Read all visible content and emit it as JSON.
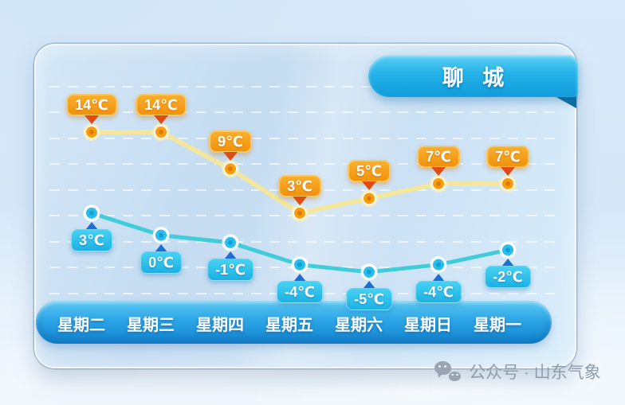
{
  "title": {
    "city": "聊 城"
  },
  "watermark": {
    "text": "公众号 · 山东气象",
    "icon": "wechat-icon"
  },
  "chart_data": {
    "type": "line",
    "categories": [
      "星期二",
      "星期三",
      "星期四",
      "星期五",
      "星期六",
      "星期日",
      "星期一"
    ],
    "unit": "℃",
    "series": [
      {
        "name": "high",
        "values": [
          14,
          14,
          9,
          3,
          5,
          7,
          7
        ]
      },
      {
        "name": "low",
        "values": [
          3,
          0,
          -1,
          -4,
          -5,
          -4,
          -2
        ]
      }
    ],
    "ylim": [
      -7,
      16
    ],
    "grid": "horizontal-dashed-white",
    "legend": "none"
  },
  "colors": {
    "banner_blue": "#1ba9e2",
    "day_bar_blue": "#2aa3e5",
    "high_line": "#f2e79c",
    "high_marker": "#f79d0e",
    "high_marker_ring": "#f6ecbe",
    "high_label_bg": "#f1920c",
    "high_arrow": "#e14c15",
    "low_line": "#41ccd9",
    "low_marker": "#2abceb",
    "low_label_bg": "#1cb0e3",
    "low_arrow": "#1f6fd2",
    "watermark_gray": "#8e9dac"
  }
}
